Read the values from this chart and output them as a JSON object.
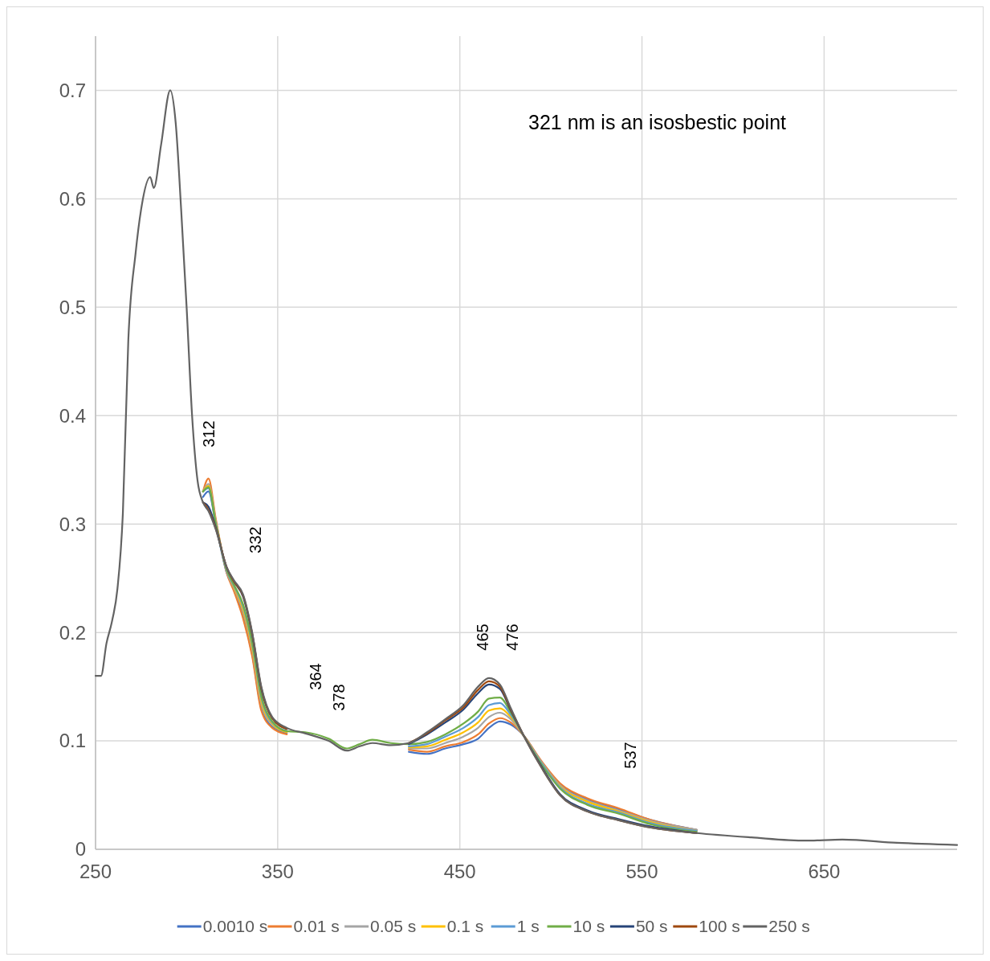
{
  "chart_data": {
    "type": "line",
    "x": [
      250,
      253,
      256,
      259,
      262,
      265,
      268,
      272,
      275,
      280,
      282,
      286,
      291,
      294,
      297,
      300,
      303,
      306,
      309,
      312,
      316,
      322,
      326,
      331,
      336,
      341,
      347,
      355,
      365,
      378,
      388,
      395,
      402,
      412,
      422,
      432,
      442,
      452,
      460,
      466,
      472,
      478,
      485,
      495,
      505,
      520,
      537,
      555,
      580,
      610,
      640,
      660,
      690,
      723
    ],
    "xlim": [
      250,
      723
    ],
    "xticks": [
      250,
      350,
      450,
      550,
      650
    ],
    "ylim": [
      0,
      0.75
    ],
    "yticks": [
      0,
      {
        "value": 0.1,
        "label": "0.1"
      },
      {
        "value": 0.2,
        "label": "0.2"
      },
      {
        "value": 0.3,
        "label": "0.3"
      },
      {
        "value": 0.4,
        "label": "0.4"
      },
      {
        "value": 0.5,
        "label": "0.5"
      },
      {
        "value": 0.6,
        "label": "0.6"
      },
      {
        "value": 0.7,
        "label": "0.7"
      }
    ],
    "grid": true,
    "legend": "bottom",
    "marker": "none",
    "line_style": "solid",
    "annotations": [
      "321 nm is an isosbestic point",
      "312",
      "332",
      "364",
      "378",
      "465",
      "476",
      "537"
    ],
    "series": [
      {
        "name": "0.0010 s",
        "color": "#4472c4",
        "values": [
          null,
          null,
          null,
          null,
          null,
          null,
          null,
          null,
          null,
          null,
          null,
          null,
          null,
          null,
          null,
          null,
          null,
          null,
          0.325,
          0.33,
          0.3,
          0.255,
          0.24,
          0.215,
          0.18,
          0.13,
          0.113,
          0.107,
          null,
          null,
          null,
          null,
          null,
          null,
          0.09,
          0.088,
          0.093,
          0.097,
          0.102,
          0.112,
          0.118,
          0.115,
          0.105,
          0.08,
          0.06,
          0.046,
          0.037,
          0.027,
          0.018,
          null,
          null,
          null,
          null,
          null
        ]
      },
      {
        "name": "0.01 s",
        "color": "#ed7d31",
        "values": [
          null,
          null,
          null,
          null,
          null,
          null,
          null,
          null,
          null,
          null,
          null,
          null,
          null,
          null,
          null,
          null,
          null,
          null,
          0.33,
          0.342,
          0.305,
          0.255,
          0.238,
          0.213,
          0.178,
          0.128,
          0.112,
          0.106,
          null,
          null,
          null,
          null,
          null,
          null,
          0.092,
          0.09,
          0.095,
          0.099,
          0.106,
          0.116,
          0.121,
          0.117,
          0.105,
          0.081,
          0.061,
          0.047,
          0.038,
          0.027,
          0.018,
          null,
          null,
          null,
          null,
          null
        ]
      },
      {
        "name": "0.05 s",
        "color": "#a5a5a5",
        "values": [
          null,
          null,
          null,
          null,
          null,
          null,
          null,
          null,
          null,
          null,
          null,
          null,
          null,
          null,
          null,
          null,
          null,
          null,
          0.33,
          0.337,
          0.303,
          0.256,
          0.241,
          0.219,
          0.184,
          0.134,
          0.115,
          0.108,
          null,
          null,
          null,
          null,
          null,
          null,
          0.093,
          0.093,
          0.098,
          0.104,
          0.112,
          0.122,
          0.126,
          0.12,
          0.105,
          0.08,
          0.059,
          0.045,
          0.036,
          0.026,
          0.018,
          null,
          null,
          null,
          null,
          null
        ]
      },
      {
        "name": "0.1 s",
        "color": "#ffc000",
        "values": [
          null,
          null,
          null,
          null,
          null,
          null,
          null,
          null,
          null,
          null,
          null,
          null,
          null,
          null,
          null,
          null,
          null,
          null,
          0.33,
          0.335,
          0.302,
          0.257,
          0.242,
          0.221,
          0.186,
          0.137,
          0.116,
          0.108,
          null,
          null,
          null,
          null,
          null,
          null,
          0.094,
          0.095,
          0.101,
          0.108,
          0.117,
          0.128,
          0.13,
          0.122,
          0.105,
          0.079,
          0.058,
          0.044,
          0.035,
          0.025,
          0.017,
          null,
          null,
          null,
          null,
          null
        ]
      },
      {
        "name": "1 s",
        "color": "#5b9bd5",
        "values": [
          null,
          null,
          null,
          null,
          null,
          null,
          null,
          null,
          null,
          null,
          null,
          null,
          null,
          null,
          null,
          null,
          null,
          null,
          0.33,
          0.333,
          0.301,
          0.257,
          0.243,
          0.224,
          0.189,
          0.14,
          0.117,
          0.109,
          null,
          null,
          null,
          null,
          null,
          null,
          0.095,
          0.097,
          0.104,
          0.112,
          0.122,
          0.133,
          0.135,
          0.124,
          0.105,
          0.079,
          0.057,
          0.042,
          0.034,
          0.024,
          0.017,
          null,
          null,
          null,
          null,
          null
        ]
      },
      {
        "name": "10 s",
        "color": "#70ad47",
        "values": [
          null,
          null,
          null,
          null,
          null,
          null,
          null,
          null,
          null,
          null,
          null,
          null,
          null,
          null,
          null,
          null,
          null,
          null,
          0.33,
          0.334,
          0.3,
          0.258,
          0.244,
          0.226,
          0.191,
          0.142,
          0.118,
          0.109,
          0.108,
          0.102,
          0.093,
          0.097,
          0.101,
          0.098,
          0.097,
          0.099,
          0.106,
          0.116,
          0.127,
          0.139,
          0.14,
          0.126,
          0.105,
          0.078,
          0.056,
          0.041,
          0.033,
          0.023,
          0.016,
          null,
          null,
          null,
          null,
          null
        ]
      },
      {
        "name": "50 s",
        "color": "#264478",
        "values": [
          null,
          null,
          null,
          null,
          null,
          null,
          null,
          null,
          null,
          null,
          null,
          null,
          null,
          null,
          null,
          null,
          null,
          null,
          0.32,
          0.316,
          0.297,
          0.26,
          0.247,
          0.233,
          0.198,
          0.148,
          0.121,
          0.111,
          null,
          null,
          null,
          null,
          null,
          null,
          0.097,
          0.106,
          0.117,
          0.129,
          0.144,
          0.152,
          0.148,
          0.128,
          0.105,
          0.076,
          0.051,
          0.036,
          0.028,
          0.021,
          0.015,
          null,
          null,
          null,
          null,
          null
        ]
      },
      {
        "name": "100 s",
        "color": "#9e480e",
        "values": [
          null,
          null,
          null,
          null,
          null,
          null,
          null,
          null,
          null,
          null,
          null,
          null,
          null,
          null,
          null,
          null,
          null,
          null,
          0.32,
          0.313,
          0.296,
          0.26,
          0.247,
          0.234,
          0.199,
          0.149,
          0.121,
          0.111,
          null,
          null,
          null,
          null,
          null,
          null,
          0.098,
          0.107,
          0.119,
          0.131,
          0.147,
          0.155,
          0.15,
          0.129,
          0.105,
          0.075,
          0.05,
          0.035,
          0.027,
          0.02,
          0.015,
          null,
          null,
          null,
          null,
          null
        ]
      },
      {
        "name": "250 s",
        "color": "#636363",
        "values": [
          0.16,
          0.16,
          0.19,
          0.21,
          0.24,
          0.31,
          0.47,
          0.55,
          0.59,
          0.62,
          0.61,
          0.65,
          0.7,
          0.67,
          0.59,
          0.5,
          0.4,
          0.34,
          0.32,
          0.312,
          0.295,
          0.26,
          0.248,
          0.235,
          0.2,
          0.15,
          0.122,
          0.112,
          0.107,
          0.1,
          0.091,
          0.095,
          0.098,
          0.096,
          0.098,
          0.108,
          0.12,
          0.133,
          0.15,
          0.158,
          0.152,
          0.13,
          0.105,
          0.075,
          0.05,
          0.035,
          0.027,
          0.02,
          0.015,
          0.011,
          0.008,
          0.009,
          0.006,
          0.004
        ]
      }
    ]
  }
}
